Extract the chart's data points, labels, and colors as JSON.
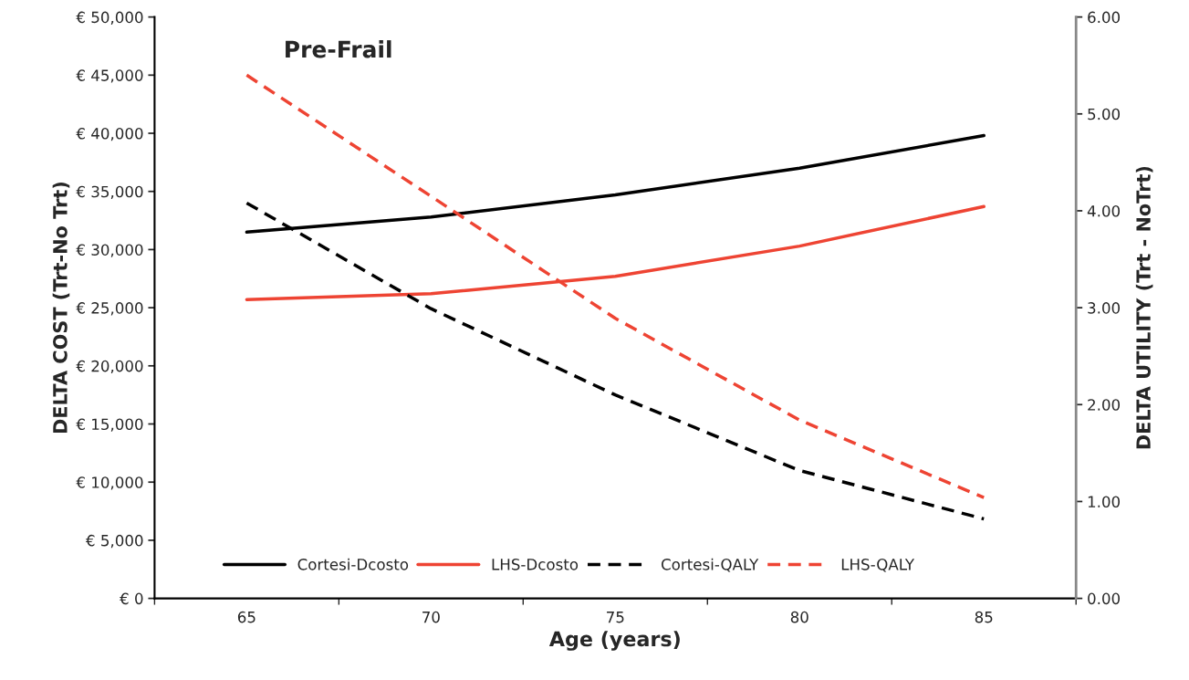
{
  "chart_data": {
    "type": "line",
    "title": "Pre-Frail",
    "xlabel": "Age (years)",
    "ylabel": "DELTA COST (Trt-No Trt)",
    "y2label": "DELTA UTILITY (Trt - NoTrt)",
    "categories": [
      "65",
      "70",
      "75",
      "80",
      "85"
    ],
    "series": [
      {
        "name": "Cortesi-Dcosto",
        "color": "#000000",
        "line_style": "solid",
        "values": [
          31500,
          32800,
          34700,
          37000,
          39800
        ]
      },
      {
        "name": "LHS-Dcosto",
        "color": "#ee4433",
        "line_style": "solid",
        "values": [
          25700,
          26200,
          27700,
          30300,
          33700
        ]
      },
      {
        "name": "Cortesi-QALY",
        "color": "#000000",
        "line_style": "dashed",
        "axis": "y2",
        "values": [
          4.08,
          2.99,
          2.1,
          1.32,
          0.82
        ]
      },
      {
        "name": "LHS-QALY",
        "color": "#ee4433",
        "line_style": "dashed",
        "axis": "y2",
        "values": [
          5.4,
          4.15,
          2.89,
          1.84,
          1.04
        ]
      }
    ],
    "ylim": [
      0,
      50000
    ],
    "yticks": [
      {
        "value": 0,
        "label": "€ 0"
      },
      {
        "value": 5000,
        "label": "€ 5,000"
      },
      {
        "value": 10000,
        "label": "€ 10,000"
      },
      {
        "value": 15000,
        "label": "€ 15,000"
      },
      {
        "value": 20000,
        "label": "€ 20,000"
      },
      {
        "value": 25000,
        "label": "€ 25,000"
      },
      {
        "value": 30000,
        "label": "€ 30,000"
      },
      {
        "value": 35000,
        "label": "€ 35,000"
      },
      {
        "value": 40000,
        "label": "€ 40,000"
      },
      {
        "value": 45000,
        "label": "€ 45,000"
      },
      {
        "value": 50000,
        "label": "€ 50,000"
      }
    ],
    "y2lim": [
      0,
      6
    ],
    "y2ticks": [
      {
        "value": 0,
        "label": "0.00"
      },
      {
        "value": 1,
        "label": "1.00"
      },
      {
        "value": 2,
        "label": "2.00"
      },
      {
        "value": 3,
        "label": "3.00"
      },
      {
        "value": 4,
        "label": "4.00"
      },
      {
        "value": 5,
        "label": "5.00"
      },
      {
        "value": 6,
        "label": "6.00"
      }
    ],
    "grid": false,
    "legend": "bottom",
    "marker": "none"
  }
}
